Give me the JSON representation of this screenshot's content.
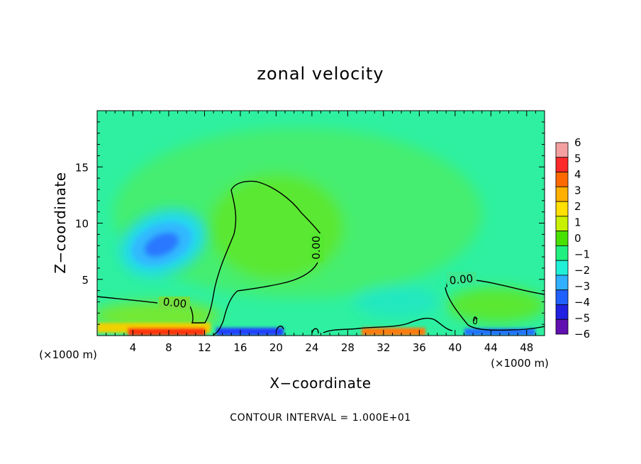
{
  "chart_data": {
    "type": "heatmap",
    "title": "zonal velocity",
    "xlabel": "X−coordinate",
    "ylabel": "Z−coordinate",
    "x_unit_left": "(×1000 m)",
    "x_unit_right": "(×1000 m)",
    "x_ticks": [
      "4",
      "8",
      "12",
      "16",
      "20",
      "24",
      "28",
      "32",
      "36",
      "40",
      "44",
      "48"
    ],
    "y_ticks": [
      "5",
      "10",
      "15"
    ],
    "xlim": [
      0,
      50
    ],
    "ylim": [
      0,
      20
    ],
    "footer": "CONTOUR INTERVAL = 1.000E+01",
    "contour_label": "0.00",
    "contour_label_count": 3,
    "contour_extra_label": "0",
    "colorbar": {
      "levels": [
        "6",
        "5",
        "4",
        "3",
        "2",
        "1",
        "0",
        "−1",
        "−2",
        "−3",
        "−4",
        "−5",
        "−6"
      ],
      "colors": [
        "#f4a0a0",
        "#ff2a2a",
        "#ff6a00",
        "#ffb000",
        "#ffe000",
        "#c8f000",
        "#48e000",
        "#20f080",
        "#20f0d8",
        "#30b0ff",
        "#2060ff",
        "#2020e0",
        "#6010b0"
      ]
    },
    "features": [
      {
        "name": "negative core",
        "x": 9,
        "z": 8,
        "value": -3
      },
      {
        "name": "surface positive",
        "x": 8,
        "z": 0.3,
        "value": 5
      },
      {
        "name": "surface negative",
        "x": 18,
        "z": 0.3,
        "value": -4
      },
      {
        "name": "surface negative",
        "x": 45,
        "z": 0.3,
        "value": -4
      }
    ]
  }
}
